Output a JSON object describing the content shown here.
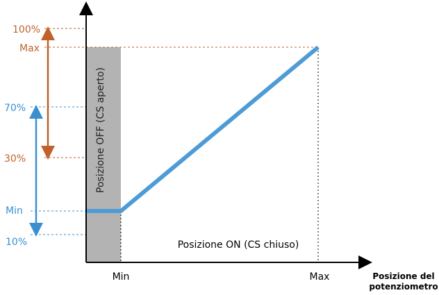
{
  "colors": {
    "orange": "#c0612b",
    "blue": "#3a8fd0",
    "line": "#4f9bd6",
    "grey_band": "#b3b3b3",
    "axis": "#000000"
  },
  "labels": {
    "y_100": "100%",
    "y_max": "Max",
    "y_70": "70%",
    "y_30": "30%",
    "y_min": "Min",
    "y_10": "10%",
    "x_min": "Min",
    "x_max": "Max",
    "off_region": "Posizione OFF (CS aperto)",
    "on_region": "Posizione ON (CS chiuso)",
    "x_axis_title_line1": "Posizione del",
    "x_axis_title_line2": "potenziometro"
  }
}
